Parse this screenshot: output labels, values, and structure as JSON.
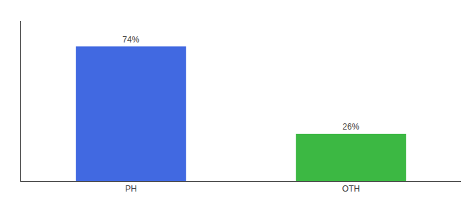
{
  "chart_data": {
    "type": "bar",
    "categories": [
      "PH",
      "OTH"
    ],
    "values": [
      74,
      26
    ],
    "colors": [
      "#4169e1",
      "#3cb843"
    ],
    "ylim": [
      0,
      88
    ],
    "yticks": [],
    "data_labels": true,
    "value_labels": [
      "74%",
      "26%"
    ],
    "tick_labels": "x",
    "grid": false
  }
}
